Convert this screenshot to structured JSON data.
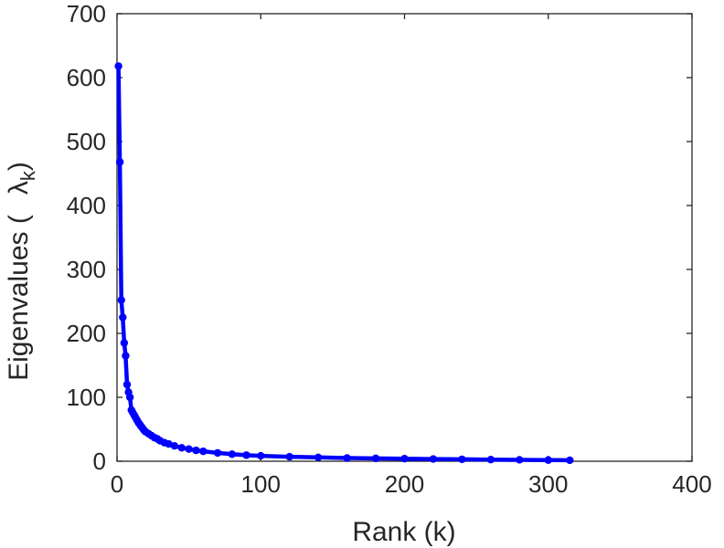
{
  "chart_data": {
    "type": "line",
    "title": "",
    "xlabel": "Rank (k)",
    "ylabel_prefix": "Eigenvalues (",
    "ylabel_symbol": "λ",
    "ylabel_subscript": "k",
    "ylabel_suffix": ")",
    "xlim": [
      0,
      400
    ],
    "ylim": [
      0,
      700
    ],
    "xticks": [
      "0",
      "100",
      "200",
      "300",
      "400"
    ],
    "yticks": [
      "0",
      "100",
      "200",
      "300",
      "400",
      "500",
      "600",
      "700"
    ],
    "grid": false,
    "series_color": "#0000ff",
    "series": [
      {
        "x": [
          1,
          2,
          3,
          4,
          5,
          6,
          7,
          8,
          9,
          10,
          11,
          12,
          13,
          14,
          15,
          16,
          17,
          18,
          19,
          20,
          22,
          24,
          26,
          28,
          30,
          33,
          36,
          40,
          45,
          50,
          55,
          60,
          70,
          80,
          90,
          100,
          120,
          140,
          160,
          180,
          200,
          220,
          240,
          260,
          280,
          300,
          315
        ],
        "y": [
          618,
          468,
          252,
          225,
          185,
          165,
          120,
          108,
          100,
          80,
          76,
          72,
          68,
          64,
          60,
          57,
          54,
          51,
          48,
          46,
          43,
          40,
          37,
          35,
          32,
          29,
          27,
          24,
          21,
          19,
          17,
          15.5,
          13,
          11,
          9.5,
          8.5,
          7,
          6,
          5,
          4.5,
          4,
          3.5,
          3,
          2.6,
          2.2,
          1.8,
          1.5
        ]
      }
    ]
  }
}
